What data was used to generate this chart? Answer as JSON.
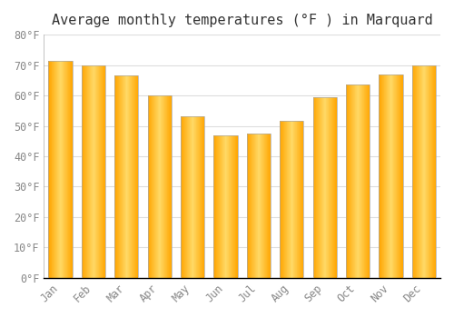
{
  "title": "Average monthly temperatures (°F ) in Marquard",
  "months": [
    "Jan",
    "Feb",
    "Mar",
    "Apr",
    "May",
    "Jun",
    "Jul",
    "Aug",
    "Sep",
    "Oct",
    "Nov",
    "Dec"
  ],
  "values": [
    71.5,
    70.0,
    66.5,
    60.0,
    53.0,
    47.0,
    47.5,
    51.5,
    59.5,
    63.5,
    67.0,
    70.0
  ],
  "bar_color_center": "#FFD966",
  "bar_color_edge": "#FFA500",
  "background_color": "#FFFFFF",
  "grid_color": "#DDDDDD",
  "ylim": [
    0,
    80
  ],
  "ytick_step": 10,
  "title_fontsize": 11,
  "tick_fontsize": 8.5,
  "tick_color": "#888888",
  "title_color": "#333333",
  "font_family": "monospace",
  "bar_width": 0.72,
  "n_gradient": 60
}
